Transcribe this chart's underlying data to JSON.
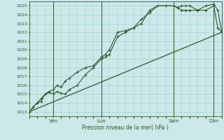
{
  "xlabel": "Pression niveau de la mer( hPa )",
  "bg_color": "#cce8e8",
  "grid_color": "#99cccc",
  "line_color": "#2d5a2d",
  "ylim": [
    1012.5,
    1025.5
  ],
  "yticks": [
    1013,
    1014,
    1015,
    1016,
    1017,
    1018,
    1019,
    1020,
    1021,
    1022,
    1023,
    1024,
    1025
  ],
  "xlim": [
    0,
    24
  ],
  "xtick_positions": [
    3,
    9,
    18,
    23
  ],
  "xtick_labels": [
    "Ven",
    "Lun",
    "Sam",
    "Dim"
  ],
  "vlines": [
    3,
    9,
    18,
    23
  ],
  "series1_x": [
    0,
    0.5,
    1,
    1.5,
    2,
    2.5,
    3,
    3.5,
    4,
    4.5,
    5,
    6,
    7,
    8,
    9,
    9.5,
    10,
    11,
    12,
    13,
    14,
    15,
    16,
    17,
    18,
    18.5,
    19,
    19.5,
    20,
    21,
    22,
    23,
    23.5,
    24
  ],
  "series1_y": [
    1013,
    1013.5,
    1014,
    1014.2,
    1015,
    1015.2,
    1015,
    1015.3,
    1015.1,
    1015,
    1015.5,
    1016,
    1017.2,
    1018,
    1019,
    1019.2,
    1019.5,
    1021.5,
    1022,
    1022.5,
    1023.5,
    1024.2,
    1025,
    1025,
    1025,
    1024.8,
    1025,
    1025,
    1025,
    1024.5,
    1025,
    1025.2,
    1024.5,
    1022
  ],
  "series2_x": [
    0,
    0.5,
    1,
    1.5,
    2,
    2.5,
    3,
    3.5,
    4,
    4.5,
    5,
    6,
    7,
    8,
    9,
    9.5,
    10,
    11,
    12,
    13,
    14,
    15,
    16,
    17,
    18,
    18.5,
    19,
    19.5,
    20,
    21,
    22,
    23,
    23.5,
    24
  ],
  "series2_y": [
    1013,
    1013.5,
    1014,
    1014.5,
    1015,
    1015.3,
    1015.5,
    1016,
    1015.8,
    1016.5,
    1016.8,
    1017.5,
    1018,
    1018.2,
    1019.2,
    1019.5,
    1020,
    1022,
    1022.2,
    1022.5,
    1023,
    1024.5,
    1025,
    1025,
    1025,
    1024.8,
    1024.5,
    1024.5,
    1024.5,
    1024.5,
    1024.5,
    1025,
    1022.5,
    1022
  ],
  "series3_x": [
    0,
    24
  ],
  "series3_y": [
    1013,
    1022
  ]
}
